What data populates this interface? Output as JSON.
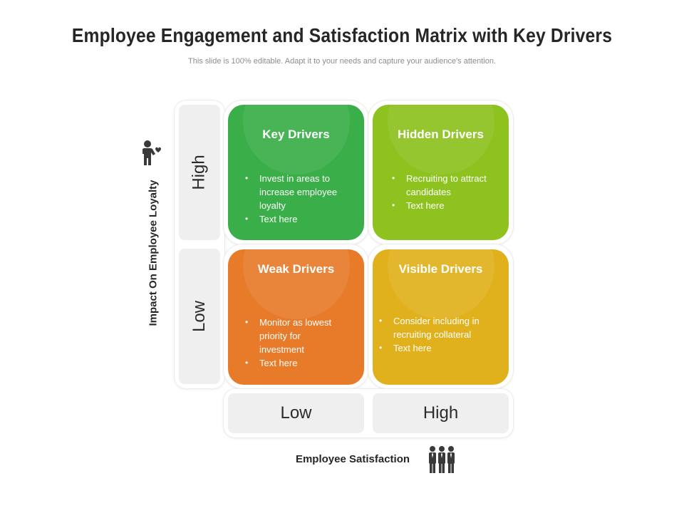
{
  "title": "Employee Engagement and Satisfaction Matrix with Key Drivers",
  "subtitle": "This slide is 100% editable. Adapt it to your needs and capture your audience's attention.",
  "y_axis": {
    "label": "Impact On Employee Loyalty",
    "high": "High",
    "low": "Low",
    "icon": "person-heart-icon"
  },
  "x_axis": {
    "label": "Employee Satisfaction",
    "low": "Low",
    "high": "High",
    "icon": "group-people-icon"
  },
  "quadrants": {
    "top_left": {
      "title": "Key Drivers",
      "color": "#3aae48",
      "bullets": [
        "Invest in areas to increase employee loyalty",
        "Text here"
      ]
    },
    "top_right": {
      "title": "Hidden Drivers",
      "color": "#8dc21f",
      "bullets": [
        "Recruiting to attract candidates",
        "Text here"
      ]
    },
    "bottom_left": {
      "title": "Weak Drivers",
      "color": "#e87b2a",
      "bullets": [
        "Monitor as lowest priority for investment",
        "Text here"
      ]
    },
    "bottom_right": {
      "title": "Visible Drivers",
      "color": "#e0b11c",
      "bullets": [
        "Consider including in recruiting collateral",
        "Text here"
      ]
    }
  }
}
